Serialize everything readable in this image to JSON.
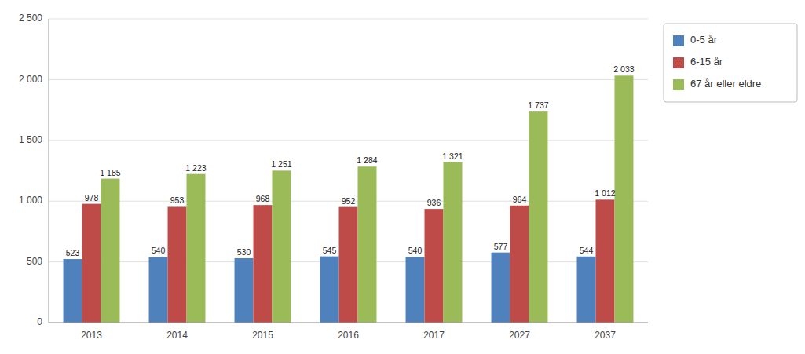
{
  "chart_data": {
    "type": "bar",
    "categories": [
      "2013",
      "2014",
      "2015",
      "2016",
      "2017",
      "2027",
      "2037"
    ],
    "series": [
      {
        "name": "0-5 år",
        "color": "#4F81BD",
        "values": [
          523,
          540,
          530,
          545,
          540,
          577,
          544
        ],
        "value_labels": [
          "523",
          "540",
          "530",
          "545",
          "540",
          "577",
          "544"
        ]
      },
      {
        "name": "6-15 år",
        "color": "#BE4B48",
        "values": [
          978,
          953,
          968,
          952,
          936,
          964,
          1012
        ],
        "value_labels": [
          "978",
          "953",
          "968",
          "952",
          "936",
          "964",
          "1 012"
        ]
      },
      {
        "name": "67 år eller eldre",
        "color": "#9BBB59",
        "values": [
          1185,
          1223,
          1251,
          1284,
          1321,
          1737,
          2033
        ],
        "value_labels": [
          "1 185",
          "1 223",
          "1 251",
          "1 284",
          "1 321",
          "1 737",
          "2 033"
        ]
      }
    ],
    "ylim": [
      0,
      2500
    ],
    "yticks": [
      0,
      500,
      {
        "value": 1000,
        "label": "1 000"
      },
      {
        "value": 1500,
        "label": "1 500"
      },
      {
        "value": 2000,
        "label": "2 000"
      },
      {
        "value": 2500,
        "label": "2 500"
      }
    ],
    "grid": true,
    "data_labels": true,
    "legend": "right"
  }
}
